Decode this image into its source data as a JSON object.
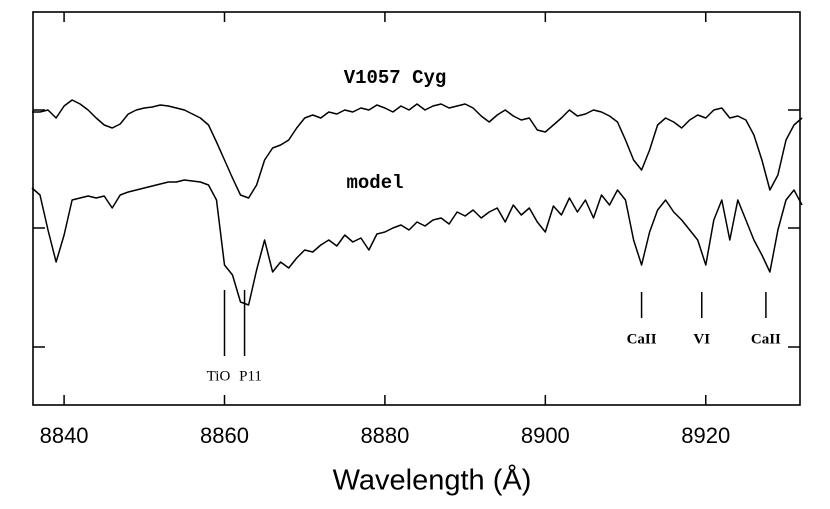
{
  "chart_data": {
    "type": "line",
    "xlabel": "Wavelength (Å)",
    "x": [
      8836,
      8837,
      8838,
      8839,
      8840,
      8841,
      8842,
      8843,
      8844,
      8845,
      8846,
      8847,
      8848,
      8849,
      8850,
      8851,
      8852,
      8853,
      8854,
      8855,
      8856,
      8857,
      8858,
      8859,
      8860,
      8861,
      8862,
      8863,
      8864,
      8865,
      8866,
      8867,
      8868,
      8869,
      8870,
      8871,
      8872,
      8873,
      8874,
      8875,
      8876,
      8877,
      8878,
      8879,
      8880,
      8881,
      8882,
      8883,
      8884,
      8885,
      8886,
      8887,
      8888,
      8889,
      8890,
      8891,
      8892,
      8893,
      8894,
      8895,
      8896,
      8897,
      8898,
      8899,
      8900,
      8901,
      8902,
      8903,
      8904,
      8905,
      8906,
      8907,
      8908,
      8909,
      8910,
      8911,
      8912,
      8913,
      8914,
      8915,
      8916,
      8917,
      8918,
      8919,
      8920,
      8921,
      8922,
      8923,
      8924,
      8925,
      8926,
      8927,
      8928,
      8929,
      8930,
      8931,
      8932
    ],
    "series": [
      {
        "name": "V1057 Cyg",
        "color": "#000000",
        "values": [
          293,
          293,
          295,
          287,
          299,
          305,
          301,
          295,
          287,
          280,
          277,
          281,
          291,
          295,
          297,
          298,
          300,
          299,
          297,
          295,
          291,
          287,
          280,
          263,
          245,
          227,
          210,
          207,
          220,
          245,
          257,
          260,
          265,
          277,
          287,
          290,
          287,
          293,
          291,
          295,
          293,
          297,
          295,
          300,
          297,
          293,
          299,
          295,
          301,
          295,
          299,
          301,
          297,
          299,
          301,
          297,
          289,
          283,
          290,
          295,
          289,
          285,
          287,
          275,
          273,
          280,
          287,
          295,
          289,
          291,
          295,
          293,
          289,
          283,
          265,
          245,
          235,
          255,
          280,
          287,
          283,
          277,
          285,
          290,
          287,
          295,
          297,
          287,
          289,
          285,
          270,
          245,
          215,
          230,
          265,
          280,
          287
        ]
      },
      {
        "name": "model",
        "color": "#000000",
        "values": [
          217,
          210,
          175,
          143,
          170,
          205,
          207,
          209,
          207,
          209,
          197,
          210,
          213,
          215,
          217,
          219,
          221,
          223,
          223,
          225,
          224,
          223,
          220,
          205,
          140,
          130,
          103,
          100,
          135,
          165,
          133,
          143,
          137,
          147,
          155,
          153,
          160,
          165,
          159,
          170,
          163,
          167,
          155,
          171,
          173,
          177,
          180,
          175,
          183,
          179,
          185,
          187,
          181,
          193,
          189,
          195,
          187,
          193,
          197,
          183,
          200,
          190,
          197,
          183,
          173,
          199,
          190,
          207,
          193,
          205,
          187,
          210,
          200,
          215,
          205,
          165,
          140,
          173,
          195,
          205,
          193,
          185,
          175,
          165,
          140,
          185,
          205,
          165,
          205,
          185,
          165,
          150,
          133,
          175,
          205,
          215,
          200
        ]
      }
    ],
    "line_labels": [
      {
        "text": "TiO",
        "x": 8860
      },
      {
        "text": "P11",
        "x": 8862.5
      },
      {
        "text": "CaII",
        "x": 8912
      },
      {
        "text": "VI",
        "x": 8919.5
      },
      {
        "text": "CaII",
        "x": 8927.5
      }
    ],
    "xlim": [
      8836,
      8932
    ],
    "xticks": [
      8840,
      8860,
      8880,
      8900,
      8920
    ],
    "ylim": [
      0,
      393
    ],
    "yticks": [
      58,
      177,
      295
    ]
  }
}
